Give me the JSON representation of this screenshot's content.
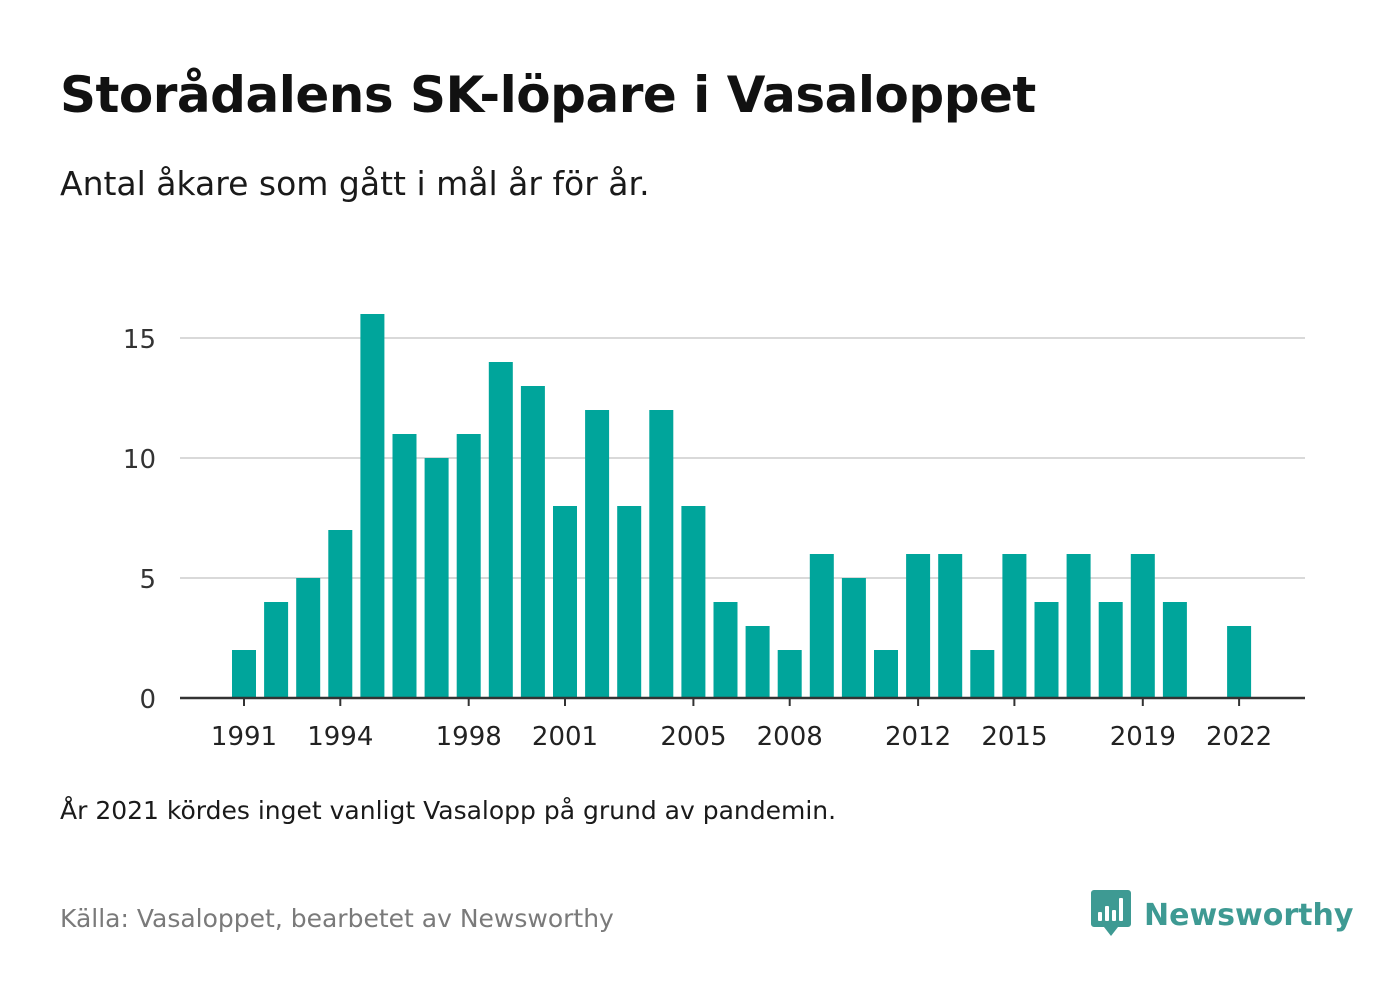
{
  "header": {
    "title": "Storådalens SK-löpare i Vasaloppet",
    "subtitle": "Antal åkare som gått i mål år för år."
  },
  "footer": {
    "note": "År 2021 kördes inget vanligt Vasalopp på grund av pandemin.",
    "source": "Källa: Vasaloppet, bearbetet av Newsworthy",
    "brand": "Newsworthy"
  },
  "colors": {
    "bar": "#00a59b",
    "grid": "#d9d9d9",
    "axis": "#333333",
    "brand": "#3e9a93"
  },
  "chart_data": {
    "type": "bar",
    "title": "Storådalens SK-löpare i Vasaloppet",
    "subtitle": "Antal åkare som gått i mål år för år.",
    "xlabel": "",
    "ylabel": "",
    "categories": [
      1991,
      1992,
      1993,
      1994,
      1995,
      1996,
      1997,
      1998,
      1999,
      2000,
      2001,
      2002,
      2003,
      2004,
      2005,
      2006,
      2007,
      2008,
      2009,
      2010,
      2011,
      2012,
      2013,
      2014,
      2015,
      2016,
      2017,
      2018,
      2019,
      2020,
      2021,
      2022
    ],
    "values": [
      2,
      4,
      5,
      7,
      16,
      11,
      10,
      11,
      14,
      13,
      8,
      12,
      8,
      12,
      8,
      4,
      3,
      2,
      6,
      5,
      2,
      6,
      6,
      2,
      6,
      4,
      6,
      4,
      6,
      4,
      null,
      3
    ],
    "x_tick_labels": [
      "1991",
      "1994",
      "1998",
      "2001",
      "2005",
      "2008",
      "2012",
      "2015",
      "2019",
      "2022"
    ],
    "y_ticks": [
      0,
      5,
      10,
      15
    ],
    "ylim": [
      0,
      16
    ],
    "grid": true,
    "legend": "none"
  }
}
